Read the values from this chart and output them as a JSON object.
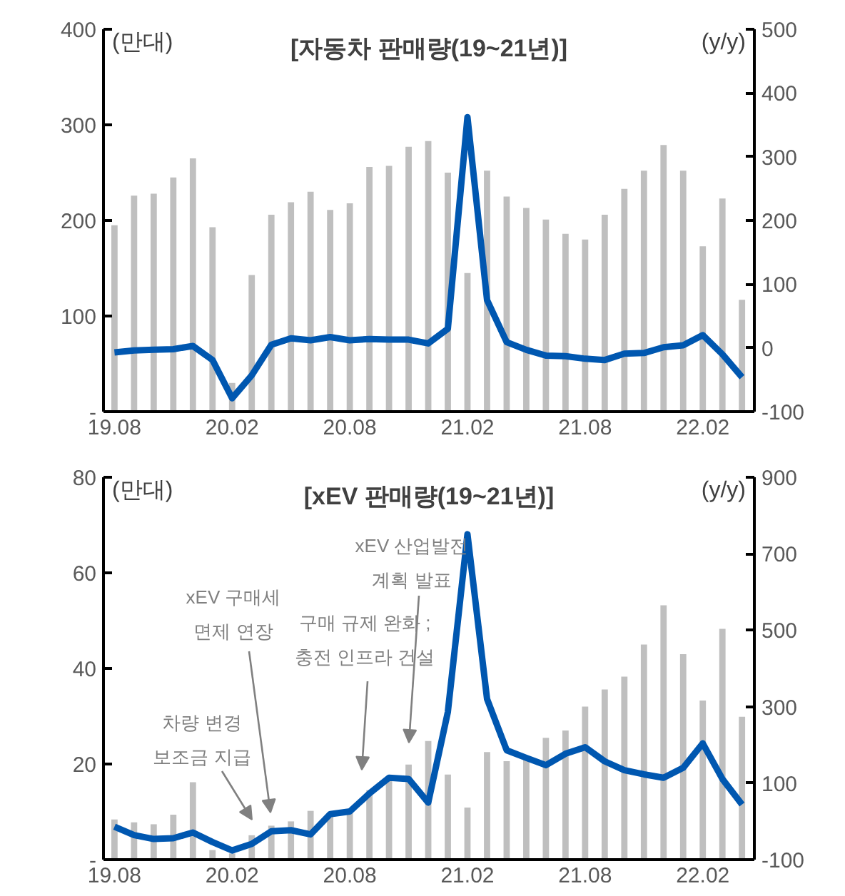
{
  "chart_data": [
    {
      "type": "bar",
      "title": "[자동차 판매량(19~21년)]",
      "ylabel": "(만대)",
      "y2label": "(y/y)",
      "categories": [
        "19.08",
        null,
        null,
        null,
        null,
        null,
        "20.02",
        null,
        null,
        null,
        null,
        null,
        "20.08",
        null,
        null,
        null,
        null,
        null,
        "21.02",
        null,
        null,
        null,
        null,
        null,
        "21.08",
        null,
        null,
        null,
        null,
        null,
        "22.02",
        null,
        null
      ],
      "series": [
        {
          "color": "#bfbfbf",
          "values": [
            195,
            226,
            228,
            245,
            265,
            193,
            30,
            143,
            206,
            219,
            230,
            211,
            218,
            256,
            257,
            277,
            283,
            250,
            145,
            252,
            225,
            213,
            201,
            186,
            180,
            206,
            233,
            252,
            279,
            252,
            173,
            223,
            117
          ]
        },
        {
          "type": "line",
          "axis": "y2",
          "color": "#0057b0",
          "values": [
            -7,
            -4,
            -3,
            -2,
            3,
            -19,
            -79,
            -43,
            5,
            15,
            12,
            17,
            12,
            14,
            13,
            13,
            7,
            30,
            362,
            75,
            9,
            -3,
            -12,
            -13,
            -17,
            -19,
            -9,
            -8,
            1,
            4,
            20,
            -10,
            -46
          ]
        }
      ],
      "ylim": [
        0,
        400
      ],
      "yticks": [
        {
          "value": 0,
          "label": "-"
        },
        100,
        200,
        300,
        400
      ],
      "y2lim": [
        -100,
        500
      ],
      "y2ticks": [
        -100,
        0,
        100,
        200,
        300,
        400,
        500
      ],
      "grid": false
    },
    {
      "type": "bar",
      "title": "[xEV 판매량(19~21년)]",
      "ylabel": "(만대)",
      "y2label": "(y/y)",
      "categories": [
        "19.08",
        null,
        null,
        null,
        null,
        null,
        "20.02",
        null,
        null,
        null,
        null,
        null,
        "20.08",
        null,
        null,
        null,
        null,
        null,
        "21.02",
        null,
        null,
        null,
        null,
        null,
        "21.08",
        null,
        null,
        null,
        null,
        null,
        "22.02",
        null,
        null
      ],
      "series": [
        {
          "color": "#bfbfbf",
          "values": [
            8.4,
            7.8,
            7.4,
            9.4,
            16.2,
            2,
            1.3,
            5.1,
            7.1,
            8,
            10.2,
            9.5,
            10,
            14.5,
            17,
            19.9,
            24.8,
            17.8,
            10.9,
            22.5,
            20.6,
            21,
            25.5,
            27,
            32,
            35.6,
            38.3,
            45,
            53.2,
            43,
            33.3,
            48.3,
            29.9
          ]
        },
        {
          "type": "line",
          "axis": "y2",
          "color": "#0057b0",
          "values": [
            -14,
            -36,
            -46,
            -44,
            -29,
            -54,
            -76,
            -59,
            -26,
            -23,
            -34,
            19,
            26,
            73,
            114,
            111,
            49,
            286,
            751,
            320,
            186,
            166,
            147,
            177,
            194,
            157,
            134,
            123,
            114,
            140,
            204,
            111,
            44
          ]
        }
      ],
      "annotations": [
        "차량 변경\n보조금 지급",
        "xEV 구매세\n면제 연장",
        "구매 규제 완화 ;\n충전 인프라 건설",
        "xEV 산업발전\n계획 발표"
      ],
      "ylim": [
        0,
        80
      ],
      "yticks": [
        {
          "value": 0,
          "label": "-"
        },
        20,
        40,
        60,
        80
      ],
      "y2lim": [
        -100,
        900
      ],
      "y2ticks": [
        -100,
        100,
        300,
        500,
        700,
        900
      ],
      "grid": false
    }
  ]
}
